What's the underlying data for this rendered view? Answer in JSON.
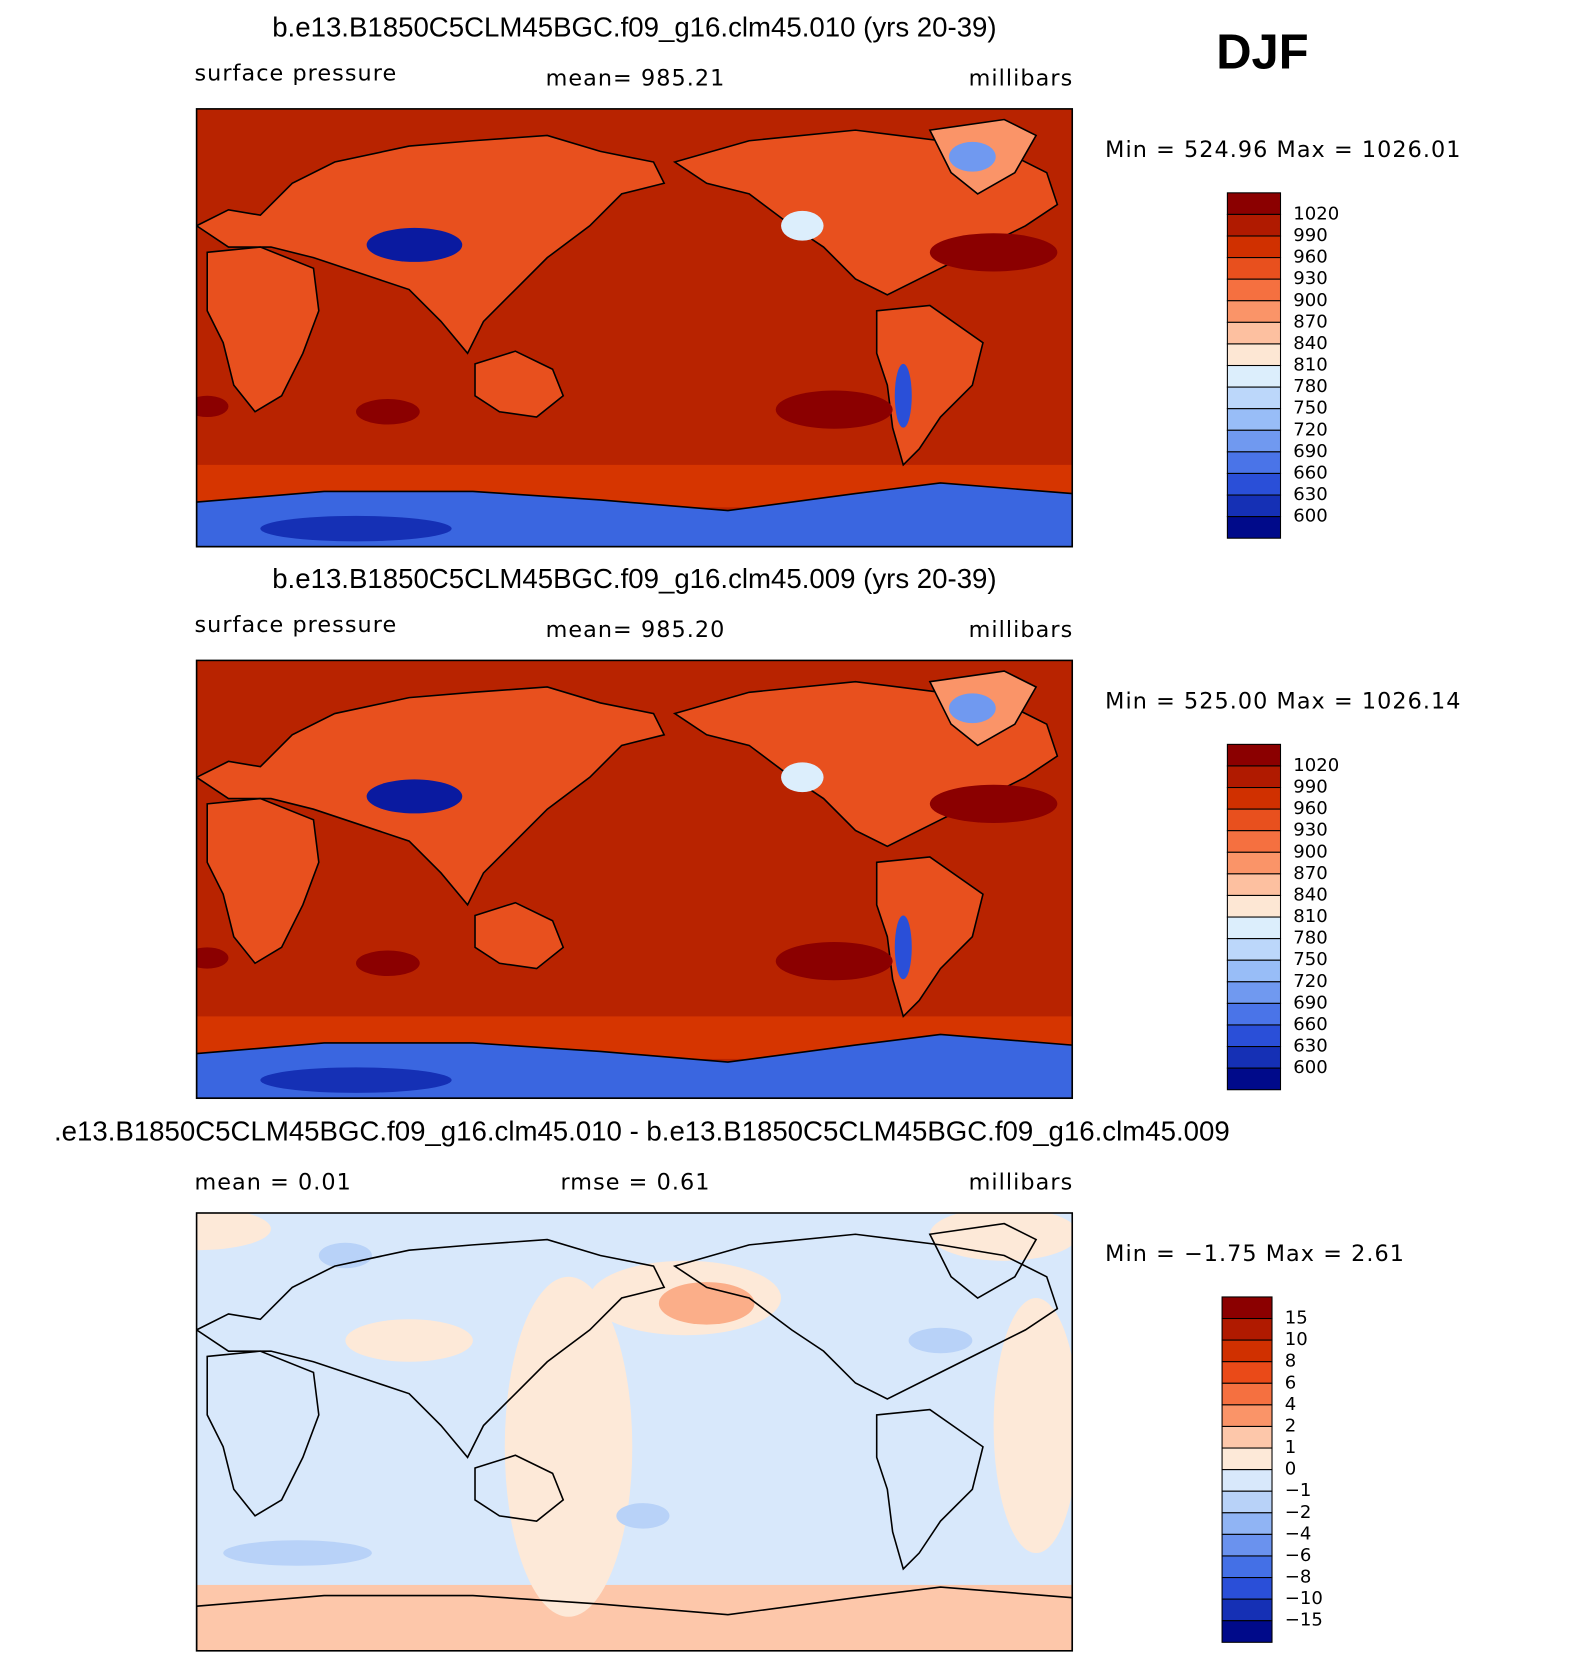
{
  "season": "DJF",
  "panels": [
    {
      "title": "b.e13.B1850C5CLM45BGC.f09_g16.clm45.010 (yrs 20-39)",
      "left_label": "surface pressure",
      "center_label": "mean=  985.21",
      "right_label": "millibars",
      "minmax": "Min  =  524.96  Max  =  1026.01",
      "colorbar_labels": [
        "1020",
        "990",
        "960",
        "930",
        "900",
        "870",
        "840",
        "810",
        "780",
        "750",
        "720",
        "690",
        "660",
        "630",
        "600"
      ]
    },
    {
      "title": "b.e13.B1850C5CLM45BGC.f09_g16.clm45.009 (yrs 20-39)",
      "left_label": "surface pressure",
      "center_label": "mean=  985.20",
      "right_label": "millibars",
      "minmax": "Min  =  525.00  Max  =  1026.14",
      "colorbar_labels": [
        "1020",
        "990",
        "960",
        "930",
        "900",
        "870",
        "840",
        "810",
        "780",
        "750",
        "720",
        "690",
        "660",
        "630",
        "600"
      ]
    },
    {
      "title": ".e13.B1850C5CLM45BGC.f09_g16.clm45.010 - b.e13.B1850C5CLM45BGC.f09_g16.clm45.009",
      "left_label": "mean =     0.01",
      "center_label": "rmse =     0.61",
      "right_label": "millibars",
      "minmax": "Min  =    −1.75  Max  =      2.61",
      "colorbar_labels": [
        "15",
        "10",
        "8",
        "6",
        "4",
        "2",
        "1",
        "0",
        "−1",
        "−2",
        "−4",
        "−6",
        "−8",
        "−10",
        "−15"
      ]
    }
  ]
}
